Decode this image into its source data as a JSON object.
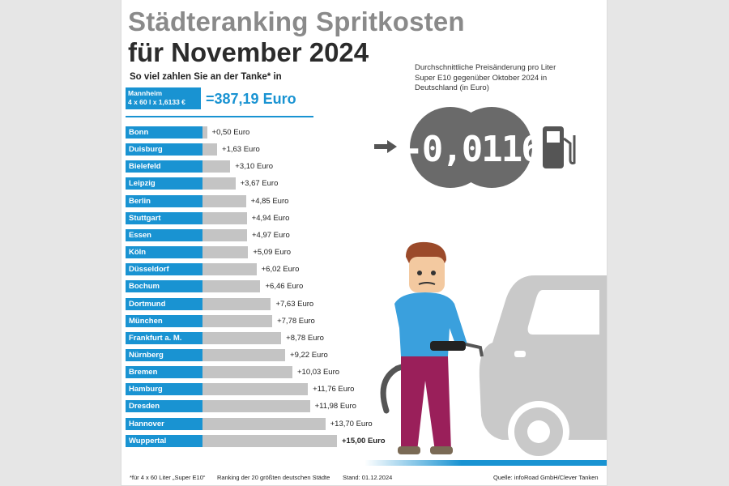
{
  "header": {
    "title_line1": "Städteranking Spritkosten",
    "title_line2": "für November 2024",
    "subtitle": "So viel zahlen Sie an der Tanke* in"
  },
  "reference": {
    "city": "Mannheim",
    "formula": "4 x 60 l x 1,6133 €",
    "total": "=387,19 Euro"
  },
  "average_change": {
    "description": "Durchschnittliche Preisänderung pro Liter Super E10 gegenüber Oktober 2024 in Deutschland (in Euro)",
    "value": "-0,0116"
  },
  "chart_data": {
    "type": "bar",
    "orientation": "horizontal",
    "unit": "Euro",
    "categories": [
      "Bonn",
      "Duisburg",
      "Bielefeld",
      "Leipzig",
      "Berlin",
      "Stuttgart",
      "Essen",
      "Köln",
      "Düsseldorf",
      "Bochum",
      "Dortmund",
      "München",
      "Frankfurt a. M.",
      "Nürnberg",
      "Bremen",
      "Hamburg",
      "Dresden",
      "Hannover",
      "Wuppertal"
    ],
    "values": [
      0.5,
      1.63,
      3.1,
      3.67,
      4.85,
      4.94,
      4.97,
      5.09,
      6.02,
      6.46,
      7.63,
      7.78,
      8.78,
      9.22,
      10.03,
      11.76,
      11.98,
      13.7,
      15.0
    ],
    "value_labels": [
      "+0,50 Euro",
      "+1,63 Euro",
      "+3,10 Euro",
      "+3,67 Euro",
      "+4,85 Euro",
      "+4,94 Euro",
      "+4,97 Euro",
      "+5,09 Euro",
      "+6,02 Euro",
      "+6,46 Euro",
      "+7,63 Euro",
      "+7,78 Euro",
      "+8,78 Euro",
      "+9,22 Euro",
      "+10,03 Euro",
      "+11,76 Euro",
      "+11,98 Euro",
      "+13,70 Euro",
      "+15,00 Euro"
    ],
    "highlight_last": true
  },
  "colors": {
    "accent": "#1993d2",
    "bar": "#c4c4c4",
    "title_gray": "#8a8a8a",
    "dark": "#2b2b2b"
  },
  "footer": {
    "footnote": "*für 4 x 60 Liter „Super E10“",
    "ranking": "Ranking der 20 größten deutschen Städte",
    "date": "Stand: 01.12.2024",
    "source": "Quelle: infoRoad GmbH/Clever Tanken"
  }
}
